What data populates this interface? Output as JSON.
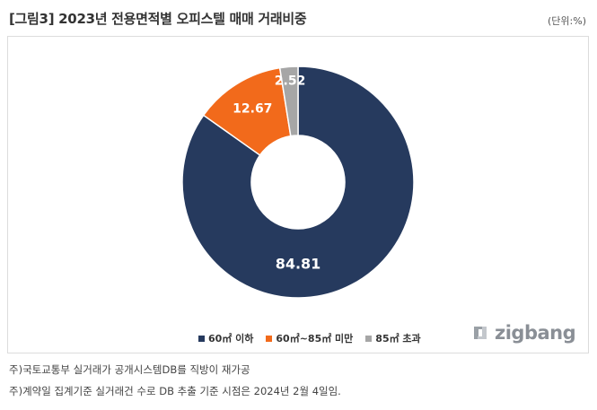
{
  "title": "[그림3] 2023년 전용면적별 오피스텔 매매 거래비중",
  "unit": "(단위:%)",
  "chart_data": {
    "type": "pie",
    "categories": [
      "60㎡ 이하",
      "60㎡~85㎡ 미만",
      "85㎡ 초과"
    ],
    "values": [
      84.81,
      12.67,
      2.52
    ],
    "labels": [
      "84.81",
      "12.67",
      "2.52"
    ],
    "colors": [
      "#263a5e",
      "#f26a1b",
      "#a6a6a6"
    ],
    "donut": true,
    "legend_position": "bottom-center"
  },
  "logo": {
    "text": "zigbang"
  },
  "notes": [
    "주)국토교통부 실거래가 공개시스템DB를 직방이 재가공",
    "주)계약일 집계기준 실거래건 수로 DB 추출 기준 시점은 2024년 2월 4일임."
  ]
}
